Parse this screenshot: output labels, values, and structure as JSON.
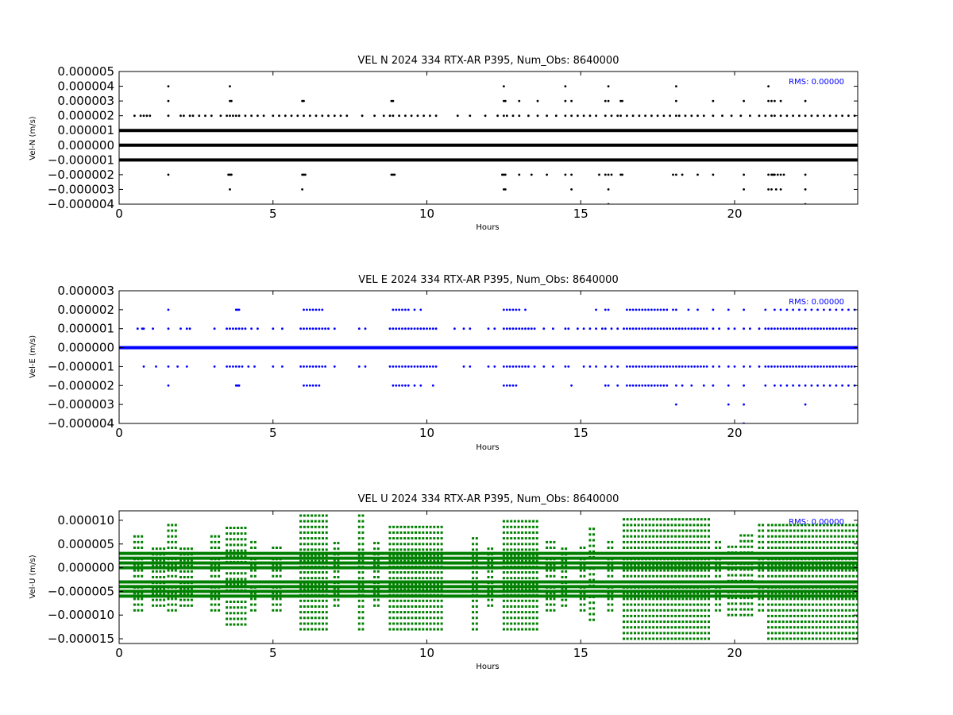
{
  "figure": {
    "background": "#ffffff"
  },
  "chart_data": [
    {
      "type": "scatter",
      "title": "VEL N 2024 334 RTX-AR  P395, Num_Obs: 8640000",
      "xlabel": "Hours",
      "ylabel": "Vel-N (m/s)",
      "xlim": [
        0,
        24
      ],
      "ylim": [
        -4e-06,
        5e-06
      ],
      "xticks": [
        0,
        5,
        10,
        15,
        20
      ],
      "yticks": [
        -4e-06,
        -3e-06,
        -2e-06,
        -1e-06,
        0.0,
        1e-06,
        2e-06,
        3e-06,
        4e-06,
        5e-06
      ],
      "ytick_labels": [
        "−0.000004",
        "−0.000003",
        "−0.000002",
        "−0.000001",
        "0.000000",
        "0.000001",
        "0.000002",
        "0.000003",
        "0.000004",
        "0.000005"
      ],
      "rms_label": "RMS:  0.00000",
      "rms_color": "#0000ff",
      "color": "#000000",
      "bands": [
        {
          "y": 1e-06,
          "x": [
            0,
            24
          ]
        },
        {
          "y": 0.0,
          "x": [
            0,
            24
          ]
        },
        {
          "y": -1e-06,
          "x": [
            0,
            24
          ]
        }
      ],
      "points": [
        {
          "y": 2e-06,
          "x": [
            0.5,
            0.7,
            0.8,
            0.9,
            1.0,
            1.6,
            2.0,
            2.1,
            2.3,
            2.4,
            2.6,
            2.8,
            3.0,
            3.3,
            3.5,
            3.6,
            3.7,
            3.8,
            3.9,
            4.1,
            4.3,
            4.5,
            4.7,
            5.0,
            5.2,
            5.4,
            5.6,
            5.8,
            6.0,
            6.2,
            6.4,
            6.6,
            6.8,
            7.0,
            7.2,
            7.4,
            7.9,
            8.3,
            8.6,
            8.8,
            8.9,
            9.1,
            9.3,
            9.5,
            9.7,
            9.9,
            10.1,
            10.3,
            11.0,
            11.4,
            11.9,
            12.3,
            12.5,
            12.6,
            12.8,
            13.0,
            13.3,
            13.6,
            13.9,
            14.2,
            14.5,
            14.7,
            14.9,
            15.1,
            15.3,
            15.5,
            15.8,
            16.0,
            16.2,
            16.3,
            16.5,
            16.7,
            16.9,
            17.1,
            17.3,
            17.5,
            17.7,
            17.9,
            18.1,
            18.2,
            18.4,
            18.6,
            18.8,
            19.0,
            19.3,
            19.6,
            19.9,
            20.2,
            20.5,
            20.8,
            21.0,
            21.2,
            21.3,
            21.5,
            21.7,
            21.9,
            22.1,
            22.3,
            22.5,
            22.7,
            22.9,
            23.1,
            23.3,
            23.5,
            23.7,
            23.9
          ]
        },
        {
          "y": 3e-06,
          "x": [
            1.6,
            3.6,
            3.65,
            5.95,
            6.0,
            8.85,
            8.9,
            12.5,
            12.55,
            13.0,
            13.6,
            14.5,
            14.7,
            15.8,
            15.9,
            16.3,
            16.35,
            18.1,
            19.3,
            20.3,
            21.1,
            21.2,
            21.3,
            21.5,
            22.3
          ]
        },
        {
          "y": 4e-06,
          "x": [
            1.6,
            3.6,
            12.5,
            14.5,
            15.9,
            18.1,
            21.1
          ]
        },
        {
          "y": -2e-06,
          "x": [
            1.6,
            3.55,
            3.6,
            3.65,
            5.95,
            6.0,
            6.05,
            8.85,
            8.9,
            8.95,
            12.45,
            12.5,
            12.55,
            13.0,
            13.4,
            13.9,
            14.5,
            14.7,
            15.6,
            15.8,
            15.9,
            16.0,
            16.3,
            16.35,
            18.0,
            18.1,
            18.3,
            18.8,
            19.3,
            20.3,
            21.1,
            21.2,
            21.25,
            21.3,
            21.4,
            21.5,
            21.6,
            22.3
          ]
        },
        {
          "y": -3e-06,
          "x": [
            3.6,
            5.95,
            12.5,
            12.55,
            14.7,
            15.9,
            20.3,
            21.1,
            21.2,
            21.35,
            21.5,
            22.3
          ]
        },
        {
          "y": -4e-06,
          "x": [
            15.9,
            22.3
          ]
        }
      ]
    },
    {
      "type": "scatter",
      "title": "VEL E 2024 334 RTX-AR  P395, Num_Obs: 8640000",
      "xlabel": "Hours",
      "ylabel": "Vel-E (m/s)",
      "xlim": [
        0,
        24
      ],
      "ylim": [
        -4e-06,
        3e-06
      ],
      "xticks": [
        0,
        5,
        10,
        15,
        20
      ],
      "yticks": [
        -4e-06,
        -3e-06,
        -2e-06,
        -1e-06,
        0.0,
        1e-06,
        2e-06,
        3e-06
      ],
      "ytick_labels": [
        "−0.000004",
        "−0.000003",
        "−0.000002",
        "−0.000001",
        "0.000000",
        "0.000001",
        "0.000002",
        "0.000003"
      ],
      "rms_label": "RMS:  0.00000",
      "rms_color": "#0000ff",
      "color": "#0000ff",
      "bands": [
        {
          "y": 0.0,
          "x": [
            0,
            24
          ]
        }
      ],
      "points": [
        {
          "y": 1e-06,
          "x": [
            0.6,
            0.75,
            0.8,
            1.1,
            1.6,
            2.0,
            2.2,
            2.3,
            3.1,
            3.5,
            3.6,
            3.7,
            3.8,
            3.9,
            4.0,
            4.1,
            4.3,
            4.5,
            5.0,
            5.3,
            5.9,
            6.0,
            6.1,
            6.2,
            6.3,
            6.4,
            6.5,
            6.6,
            6.7,
            6.8,
            7.0,
            7.8,
            8.0,
            8.8,
            8.9,
            9.0,
            9.1,
            9.2,
            9.3,
            9.4,
            9.5,
            9.6,
            9.7,
            9.8,
            9.9,
            10.0,
            10.1,
            10.2,
            10.3,
            10.9,
            11.2,
            11.4,
            12.0,
            12.2,
            12.5,
            12.6,
            12.7,
            12.8,
            12.9,
            13.0,
            13.1,
            13.2,
            13.3,
            13.4,
            13.5,
            13.8,
            14.1,
            14.5,
            14.6,
            14.9,
            15.1,
            15.3,
            15.5,
            15.7,
            15.8,
            16.0,
            16.2,
            16.4,
            16.5,
            16.6,
            16.7,
            16.8,
            16.9,
            17.0,
            17.1,
            17.2,
            17.3,
            17.4,
            17.5,
            17.6,
            17.7,
            17.8,
            17.9,
            18.0,
            18.1,
            18.2,
            18.3,
            18.4,
            18.5,
            18.6,
            18.7,
            18.8,
            18.9,
            19.0,
            19.1,
            19.3,
            19.5,
            19.8,
            20.0,
            20.3,
            20.5,
            20.8,
            21.0,
            21.1,
            21.2,
            21.3,
            21.4,
            21.5,
            21.6,
            21.7,
            21.8,
            21.9,
            22.0,
            22.1,
            22.2,
            22.3,
            22.4,
            22.5,
            22.6,
            22.7,
            22.8,
            22.9,
            23.0,
            23.1,
            23.2,
            23.3,
            23.4,
            23.5,
            23.6,
            23.7,
            23.8,
            23.9
          ]
        },
        {
          "y": -1e-06,
          "x": [
            0.8,
            1.2,
            1.6,
            1.9,
            2.2,
            3.1,
            3.5,
            3.6,
            3.7,
            3.8,
            3.9,
            4.0,
            4.2,
            4.4,
            5.0,
            5.3,
            5.9,
            6.0,
            6.1,
            6.2,
            6.3,
            6.4,
            6.5,
            6.6,
            6.7,
            7.0,
            7.8,
            8.0,
            8.8,
            8.9,
            9.0,
            9.1,
            9.2,
            9.3,
            9.4,
            9.5,
            9.6,
            9.7,
            9.8,
            9.9,
            10.0,
            10.1,
            10.2,
            10.3,
            11.2,
            11.4,
            12.0,
            12.2,
            12.5,
            12.6,
            12.7,
            12.8,
            12.9,
            13.0,
            13.1,
            13.2,
            13.3,
            13.5,
            13.8,
            14.1,
            14.5,
            14.6,
            15.1,
            15.3,
            15.5,
            15.8,
            16.0,
            16.2,
            16.5,
            16.6,
            16.7,
            16.8,
            16.9,
            17.0,
            17.1,
            17.2,
            17.3,
            17.4,
            17.5,
            17.6,
            17.7,
            17.8,
            17.9,
            18.0,
            18.1,
            18.2,
            18.3,
            18.4,
            18.5,
            18.6,
            18.7,
            18.8,
            18.9,
            19.0,
            19.1,
            19.3,
            19.5,
            19.8,
            20.0,
            20.3,
            20.5,
            20.8,
            21.0,
            21.1,
            21.2,
            21.3,
            21.4,
            21.5,
            21.6,
            21.7,
            21.8,
            21.9,
            22.0,
            22.1,
            22.2,
            22.3,
            22.4,
            22.5,
            22.6,
            22.7,
            22.8,
            22.9,
            23.0,
            23.1,
            23.2,
            23.3,
            23.4,
            23.5,
            23.6,
            23.7,
            23.8,
            23.9
          ]
        },
        {
          "y": 2e-06,
          "x": [
            1.6,
            3.8,
            3.85,
            3.9,
            6.0,
            6.1,
            6.2,
            6.3,
            6.4,
            6.5,
            6.6,
            8.9,
            9.0,
            9.1,
            9.2,
            9.3,
            9.4,
            9.6,
            9.8,
            12.5,
            12.6,
            12.7,
            12.8,
            12.9,
            13.0,
            13.2,
            15.5,
            15.8,
            15.9,
            16.5,
            16.6,
            16.7,
            16.8,
            16.9,
            17.0,
            17.1,
            17.2,
            17.3,
            17.4,
            17.5,
            17.6,
            17.7,
            17.8,
            18.0,
            18.1,
            18.5,
            18.8,
            19.3,
            19.8,
            20.3,
            21.0,
            21.3,
            21.5,
            21.7,
            21.9,
            22.1,
            22.3,
            22.5,
            22.7,
            22.9,
            23.1,
            23.3,
            23.5,
            23.7,
            23.9
          ]
        },
        {
          "y": -2e-06,
          "x": [
            1.6,
            3.8,
            3.85,
            3.9,
            6.0,
            6.1,
            6.2,
            6.3,
            6.4,
            6.5,
            8.9,
            9.0,
            9.1,
            9.2,
            9.3,
            9.4,
            9.6,
            9.8,
            10.2,
            12.5,
            12.6,
            12.7,
            12.8,
            12.9,
            14.7,
            15.8,
            15.9,
            16.2,
            16.5,
            16.6,
            16.7,
            16.8,
            16.9,
            17.0,
            17.1,
            17.2,
            17.3,
            17.4,
            17.5,
            17.6,
            17.7,
            17.8,
            18.1,
            18.3,
            18.6,
            19.0,
            19.3,
            19.8,
            20.3,
            21.0,
            21.3,
            21.5,
            21.7,
            21.9,
            22.1,
            22.3,
            22.5,
            22.7,
            22.9,
            23.1,
            23.3,
            23.5,
            23.7,
            23.9
          ]
        },
        {
          "y": -3e-06,
          "x": [
            18.1,
            19.8,
            20.3,
            22.3
          ]
        },
        {
          "y": -4e-06,
          "x": [
            20.3
          ]
        }
      ]
    },
    {
      "type": "scatter",
      "title": "VEL U 2024 334 RTX-AR  P395, Num_Obs: 8640000",
      "xlabel": "Hours",
      "ylabel": "Vel-U (m/s)",
      "xlim": [
        0,
        24
      ],
      "ylim": [
        -1.6e-05,
        1.2e-05
      ],
      "xticks": [
        0,
        5,
        10,
        15,
        20
      ],
      "yticks": [
        -1.5e-05,
        -1e-05,
        -5e-06,
        0.0,
        5e-06,
        1e-05
      ],
      "ytick_labels": [
        "−0.000015",
        "−0.000010",
        "−0.000005",
        "0.000000",
        "0.000005",
        "0.000010"
      ],
      "rms_label": "RMS:  0.00000",
      "rms_color": "#0000ff",
      "color": "#008000",
      "bands": [
        {
          "y": 3e-06,
          "x": [
            0,
            24
          ]
        },
        {
          "y": 2e-06,
          "x": [
            0,
            24
          ]
        },
        {
          "y": 1e-06,
          "x": [
            0,
            24
          ]
        },
        {
          "y": 0.0,
          "x": [
            0,
            24
          ]
        },
        {
          "y": -3e-06,
          "x": [
            0,
            24
          ]
        },
        {
          "y": -4e-06,
          "x": [
            0,
            24
          ]
        },
        {
          "y": -5e-06,
          "x": [
            0,
            24
          ]
        },
        {
          "y": -6e-06,
          "x": [
            0,
            24
          ]
        }
      ],
      "clusters": [
        {
          "x": [
            0.5,
            0.8
          ],
          "ymin": -9e-06,
          "ymax": 7e-06
        },
        {
          "x": [
            1.1,
            1.5
          ],
          "ymin": -8e-06,
          "ymax": 5e-06
        },
        {
          "x": [
            1.6,
            1.9
          ],
          "ymin": -9e-06,
          "ymax": 1e-05
        },
        {
          "x": [
            2.0,
            2.4
          ],
          "ymin": -8e-06,
          "ymax": 4e-06
        },
        {
          "x": [
            3.0,
            3.3
          ],
          "ymin": -9e-06,
          "ymax": 7e-06
        },
        {
          "x": [
            3.5,
            4.2
          ],
          "ymin": -1.2e-05,
          "ymax": 9e-06
        },
        {
          "x": [
            4.3,
            4.5
          ],
          "ymin": -9e-06,
          "ymax": 6e-06
        },
        {
          "x": [
            5.0,
            5.3
          ],
          "ymin": -9e-06,
          "ymax": 5e-06
        },
        {
          "x": [
            5.9,
            6.8
          ],
          "ymin": -1.3e-05,
          "ymax": 1.1e-05
        },
        {
          "x": [
            7.0,
            7.2
          ],
          "ymin": -8e-06,
          "ymax": 6e-06
        },
        {
          "x": [
            7.8,
            8.0
          ],
          "ymin": -1.3e-05,
          "ymax": 1.1e-05
        },
        {
          "x": [
            8.3,
            8.5
          ],
          "ymin": -8e-06,
          "ymax": 6e-06
        },
        {
          "x": [
            8.8,
            10.5
          ],
          "ymin": -1.3e-05,
          "ymax": 9e-06
        },
        {
          "x": [
            11.5,
            11.7
          ],
          "ymin": -1.3e-05,
          "ymax": 7e-06
        },
        {
          "x": [
            12.0,
            12.2
          ],
          "ymin": -8e-06,
          "ymax": 5e-06
        },
        {
          "x": [
            12.5,
            13.6
          ],
          "ymin": -1.3e-05,
          "ymax": 1e-05
        },
        {
          "x": [
            13.9,
            14.2
          ],
          "ymin": -9e-06,
          "ymax": 6e-06
        },
        {
          "x": [
            14.4,
            14.6
          ],
          "ymin": -8e-06,
          "ymax": 5e-06
        },
        {
          "x": [
            15.0,
            15.2
          ],
          "ymin": -9e-06,
          "ymax": 5e-06
        },
        {
          "x": [
            15.3,
            15.5
          ],
          "ymin": -1.1e-05,
          "ymax": 9e-06
        },
        {
          "x": [
            15.9,
            16.1
          ],
          "ymin": -9e-06,
          "ymax": 6e-06
        },
        {
          "x": [
            16.4,
            19.2
          ],
          "ymin": -1.5e-05,
          "ymax": 1.1e-05
        },
        {
          "x": [
            19.4,
            19.6
          ],
          "ymin": -9e-06,
          "ymax": 6e-06
        },
        {
          "x": [
            19.8,
            20.1
          ],
          "ymin": -1e-05,
          "ymax": 5e-06
        },
        {
          "x": [
            20.2,
            20.6
          ],
          "ymin": -1e-05,
          "ymax": 7e-06
        },
        {
          "x": [
            20.8,
            21.0
          ],
          "ymin": -9e-06,
          "ymax": 1e-05
        },
        {
          "x": [
            21.1,
            24.0
          ],
          "ymin": -1.5e-05,
          "ymax": 1e-05
        }
      ]
    }
  ]
}
